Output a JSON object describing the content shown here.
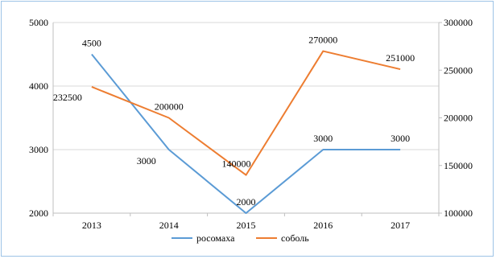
{
  "chart_data": {
    "type": "line",
    "categories": [
      "2013",
      "2014",
      "2015",
      "2016",
      "2017"
    ],
    "y_left": {
      "ylim": [
        2000,
        5000
      ],
      "ticks": [
        "2000",
        "3000",
        "4000",
        "5000"
      ]
    },
    "y_right": {
      "ylim": [
        100000,
        300000
      ],
      "ticks": [
        "100000",
        "150000",
        "200000",
        "250000",
        "300000"
      ]
    },
    "grid": true,
    "legend_position": "bottom",
    "series": [
      {
        "name": "росомаха",
        "axis": "left",
        "color": "#5b9bd5",
        "values": [
          4500,
          3000,
          2000,
          3000,
          3000
        ],
        "labels": [
          "4500",
          "3000",
          "2000",
          "3000",
          "3000"
        ]
      },
      {
        "name": "соболь",
        "axis": "right",
        "color": "#ed7d31",
        "values": [
          232500,
          200000,
          140000,
          270000,
          251000
        ],
        "labels": [
          "232500",
          "200000",
          "140000",
          "270000",
          "251000"
        ]
      }
    ]
  }
}
